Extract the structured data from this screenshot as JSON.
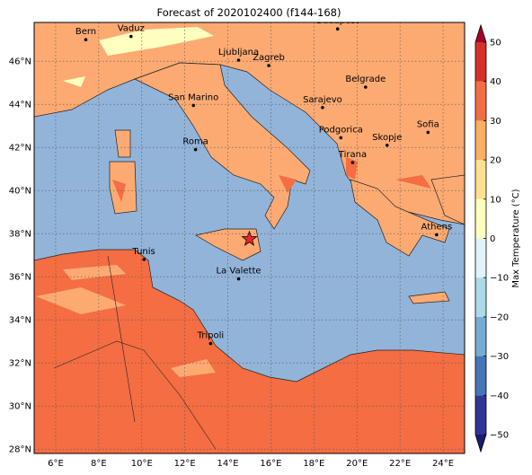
{
  "map": {
    "title": "Forecast of 2020102400 (f144-168)",
    "xlim": [
      5,
      25
    ],
    "ylim": [
      27.8,
      47.8
    ],
    "xticks": [
      {
        "value": 6,
        "label": "6°E"
      },
      {
        "value": 8,
        "label": "8°E"
      },
      {
        "value": 10,
        "label": "10°E"
      },
      {
        "value": 12,
        "label": "12°E"
      },
      {
        "value": 14,
        "label": "14°E"
      },
      {
        "value": 16,
        "label": "16°E"
      },
      {
        "value": 18,
        "label": "18°E"
      },
      {
        "value": 20,
        "label": "20°E"
      },
      {
        "value": 22,
        "label": "22°E"
      },
      {
        "value": 24,
        "label": "24°E"
      }
    ],
    "yticks": [
      {
        "value": 28,
        "label": "28°N"
      },
      {
        "value": 30,
        "label": "30°N"
      },
      {
        "value": 32,
        "label": "32°N"
      },
      {
        "value": 34,
        "label": "34°N"
      },
      {
        "value": 36,
        "label": "36°N"
      },
      {
        "value": 38,
        "label": "38°N"
      },
      {
        "value": 40,
        "label": "40°N"
      },
      {
        "value": 42,
        "label": "42°N"
      },
      {
        "value": 44,
        "label": "44°N"
      },
      {
        "value": 46,
        "label": "46°N"
      }
    ],
    "grid": true,
    "cities": [
      {
        "name": "Bern",
        "lon": 7.4,
        "lat": 47.0
      },
      {
        "name": "Vaduz",
        "lon": 9.5,
        "lat": 47.15
      },
      {
        "name": "Budapest",
        "lon": 19.1,
        "lat": 47.5
      },
      {
        "name": "Ljubljana",
        "lon": 14.5,
        "lat": 46.05
      },
      {
        "name": "Zagreb",
        "lon": 15.9,
        "lat": 45.8
      },
      {
        "name": "Belgrade",
        "lon": 20.4,
        "lat": 44.8
      },
      {
        "name": "San Marino",
        "lon": 12.4,
        "lat": 43.95
      },
      {
        "name": "Sarajevo",
        "lon": 18.4,
        "lat": 43.85
      },
      {
        "name": "Sofia",
        "lon": 23.3,
        "lat": 42.7
      },
      {
        "name": "Roma",
        "lon": 12.5,
        "lat": 41.9
      },
      {
        "name": "Podgorica",
        "lon": 19.25,
        "lat": 42.45
      },
      {
        "name": "Skopje",
        "lon": 21.4,
        "lat": 42.1
      },
      {
        "name": "Tirana",
        "lon": 19.8,
        "lat": 41.3
      },
      {
        "name": "Athens",
        "lon": 23.7,
        "lat": 37.95
      },
      {
        "name": "Tunis",
        "lon": 10.1,
        "lat": 36.8
      },
      {
        "name": "La Valette",
        "lon": 14.5,
        "lat": 35.9
      },
      {
        "name": "Tripoli",
        "lon": 13.2,
        "lat": 32.9
      }
    ],
    "star": {
      "lon": 15.0,
      "lat": 37.75,
      "color": "#e8262a"
    },
    "colorbar": {
      "label": "Max Temperature (°C)",
      "lim": [
        -50,
        50
      ],
      "ticks": [
        {
          "value": -50,
          "label": "−50"
        },
        {
          "value": -40,
          "label": "−40"
        },
        {
          "value": -30,
          "label": "−30"
        },
        {
          "value": -20,
          "label": "−20"
        },
        {
          "value": -10,
          "label": "−10"
        },
        0,
        10,
        20,
        30,
        40,
        50
      ],
      "colors": [
        "#313695",
        "#4575b4",
        "#74add1",
        "#abd9e9",
        "#e0f3f8",
        "#ffffbf",
        "#fee090",
        "#fdae61",
        "#f46d43",
        "#d73027"
      ],
      "under_color": "#1a1a6e",
      "over_color": "#a50026"
    }
  }
}
